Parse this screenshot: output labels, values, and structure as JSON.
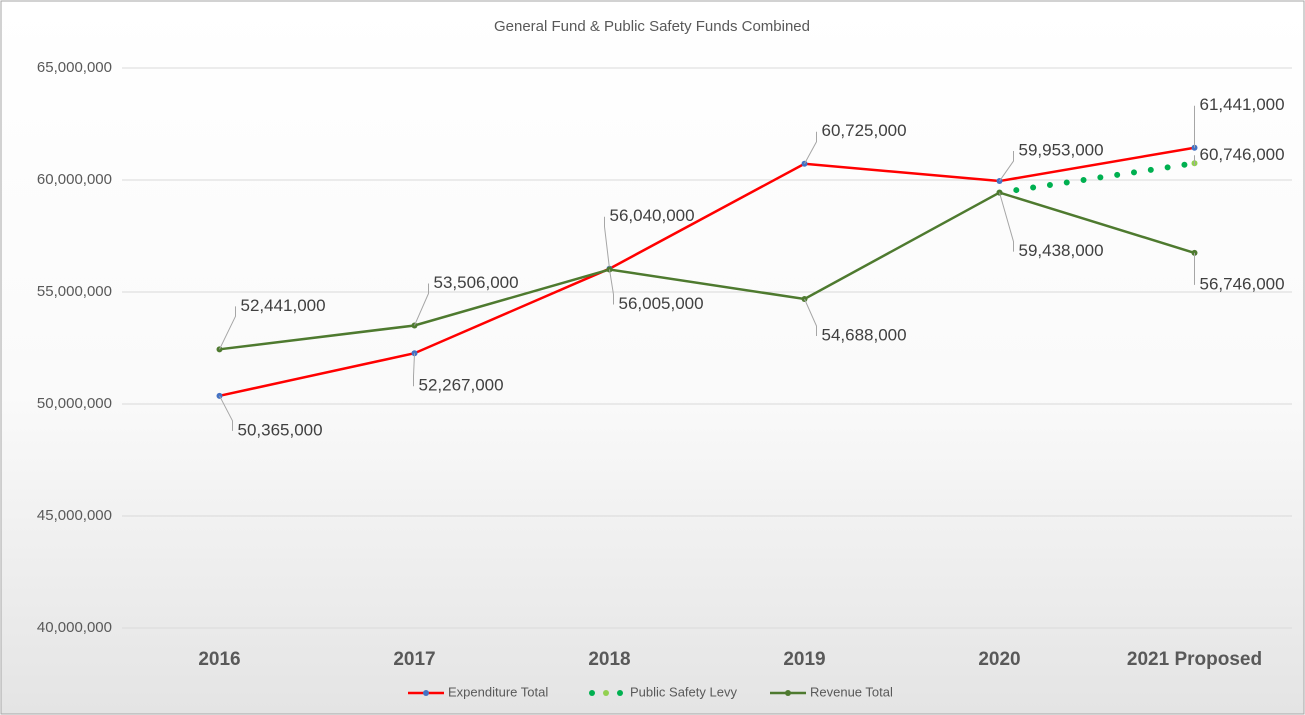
{
  "chart_data": {
    "type": "line",
    "title": "General Fund & Public Safety Funds Combined",
    "categories": [
      "2016",
      "2017",
      "2018",
      "2019",
      "2020",
      "2021 Proposed"
    ],
    "series": [
      {
        "name": "Expenditure Total",
        "color": "#ff0000",
        "marker_color": "#4472c4",
        "style": "solid",
        "values": [
          50365000,
          52267000,
          56040000,
          60725000,
          59953000,
          61441000
        ],
        "value_labels": [
          "50,365,000",
          "52,267,000",
          "56,040,000",
          "60,725,000",
          "59,953,000",
          "61,441,000"
        ]
      },
      {
        "name": "Public Safety Levy",
        "color": "#00b050",
        "marker_color": "#92d050",
        "style": "dotted",
        "values": [
          null,
          null,
          null,
          null,
          59438000,
          60746000
        ],
        "value_labels": [
          null,
          null,
          null,
          null,
          null,
          "60,746,000"
        ]
      },
      {
        "name": "Revenue Total",
        "color": "#4e7a2f",
        "marker_color": "#4e7a2f",
        "style": "solid",
        "values": [
          52441000,
          53506000,
          56005000,
          54688000,
          59438000,
          56746000
        ],
        "value_labels": [
          "52,441,000",
          "53,506,000",
          "56,005,000",
          "54,688,000",
          "59,438,000",
          "56,746,000"
        ]
      }
    ],
    "ylim": [
      40000000,
      65000000
    ],
    "yticks": [
      {
        "value": 40000000,
        "label": "40,000,000"
      },
      {
        "value": 45000000,
        "label": "45,000,000"
      },
      {
        "value": 50000000,
        "label": "50,000,000"
      },
      {
        "value": 55000000,
        "label": "55,000,000"
      },
      {
        "value": 60000000,
        "label": "60,000,000"
      },
      {
        "value": 65000000,
        "label": "65,000,000"
      }
    ],
    "grid": true,
    "legend": "bottom"
  }
}
